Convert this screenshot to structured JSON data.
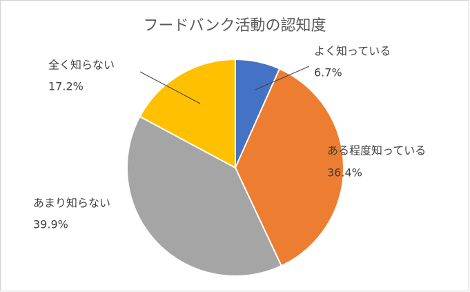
{
  "chart_data": {
    "type": "pie",
    "title": "フードバンク活動の認知度",
    "categories": [
      "よく知っている",
      "ある程度知っている",
      "あまり知らない",
      "全く知らない"
    ],
    "values": [
      6.7,
      36.4,
      39.9,
      17.2
    ],
    "value_labels": [
      "6.7%",
      "36.4%",
      "39.9%",
      "17.2%"
    ],
    "colors": [
      "#4472c4",
      "#ed7d31",
      "#a5a5a5",
      "#ffc000"
    ]
  }
}
